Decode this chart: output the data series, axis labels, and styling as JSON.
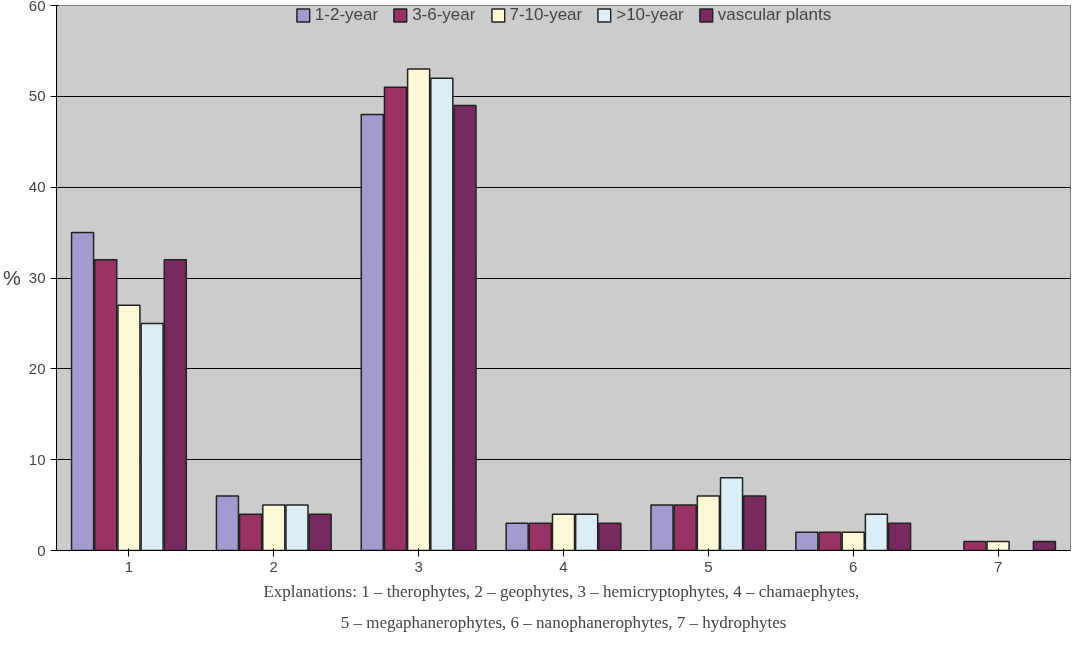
{
  "chart_data": {
    "type": "bar",
    "ylabel": "%",
    "categories": [
      "1",
      "2",
      "3",
      "4",
      "5",
      "6",
      "7"
    ],
    "series": [
      {
        "name": "1-2-year",
        "color": "#a29bd0",
        "values": [
          35,
          6,
          48,
          3,
          5,
          2,
          null
        ]
      },
      {
        "name": "3-6-year",
        "color": "#993366",
        "values": [
          32,
          4,
          51,
          3,
          5,
          2,
          1
        ]
      },
      {
        "name": "7-10-year",
        "color": "#fff8d6",
        "values": [
          27,
          5,
          53,
          4,
          6,
          2,
          1
        ]
      },
      {
        "name": ">10-year",
        "color": "#dcedf5",
        "values": [
          25,
          5,
          52,
          4,
          8,
          4,
          null
        ]
      },
      {
        "name": "vascular plants",
        "color": "#772a5e",
        "values": [
          32,
          4,
          49,
          3,
          6,
          3,
          1
        ]
      }
    ],
    "ylim": [
      0,
      60
    ],
    "yticks": [
      0,
      10,
      20,
      30,
      40,
      50,
      60
    ],
    "grid": "y",
    "legend": "top",
    "annotations": [
      "Explanations:  1 – therophytes, 2 – geophytes, 3 – hemicryptophytes, 4 – chamaephytes,",
      "5 – megaphanerophytes, 6 – nanophanerophytes, 7 – hydrophytes"
    ]
  }
}
